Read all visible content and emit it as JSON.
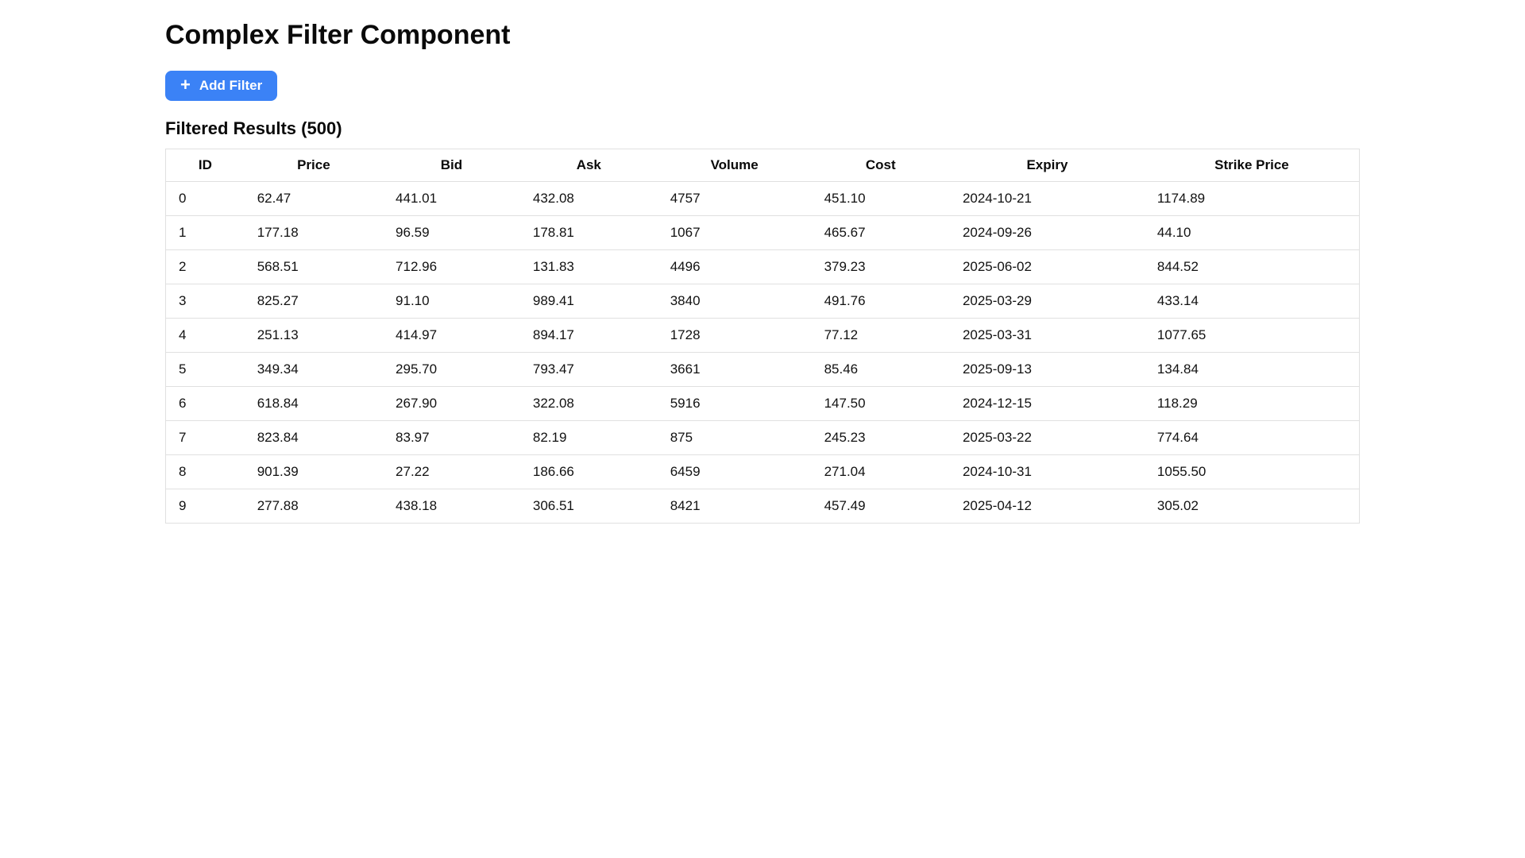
{
  "page": {
    "title": "Complex Filter Component"
  },
  "toolbar": {
    "add_filter": {
      "icon": "+",
      "label": "Add Filter"
    }
  },
  "results": {
    "heading": "Filtered Results (500)",
    "count": 500
  },
  "table": {
    "columns": [
      "ID",
      "Price",
      "Bid",
      "Ask",
      "Volume",
      "Cost",
      "Expiry",
      "Strike Price"
    ],
    "rows": [
      [
        "0",
        "62.47",
        "441.01",
        "432.08",
        "4757",
        "451.10",
        "2024-10-21",
        "1174.89"
      ],
      [
        "1",
        "177.18",
        "96.59",
        "178.81",
        "1067",
        "465.67",
        "2024-09-26",
        "44.10"
      ],
      [
        "2",
        "568.51",
        "712.96",
        "131.83",
        "4496",
        "379.23",
        "2025-06-02",
        "844.52"
      ],
      [
        "3",
        "825.27",
        "91.10",
        "989.41",
        "3840",
        "491.76",
        "2025-03-29",
        "433.14"
      ],
      [
        "4",
        "251.13",
        "414.97",
        "894.17",
        "1728",
        "77.12",
        "2025-03-31",
        "1077.65"
      ],
      [
        "5",
        "349.34",
        "295.70",
        "793.47",
        "3661",
        "85.46",
        "2025-09-13",
        "134.84"
      ],
      [
        "6",
        "618.84",
        "267.90",
        "322.08",
        "5916",
        "147.50",
        "2024-12-15",
        "118.29"
      ],
      [
        "7",
        "823.84",
        "83.97",
        "82.19",
        "875",
        "245.23",
        "2025-03-22",
        "774.64"
      ],
      [
        "8",
        "901.39",
        "27.22",
        "186.66",
        "6459",
        "271.04",
        "2024-10-31",
        "1055.50"
      ],
      [
        "9",
        "277.88",
        "438.18",
        "306.51",
        "8421",
        "457.49",
        "2025-04-12",
        "305.02"
      ]
    ]
  },
  "colors": {
    "accent": "#3b82f6",
    "border": "#e0e0e0"
  }
}
